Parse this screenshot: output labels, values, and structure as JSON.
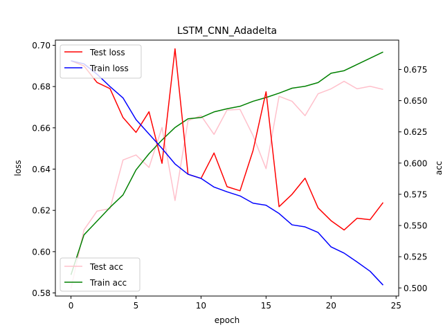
{
  "chart_data": {
    "type": "line",
    "title": "LSTM_CNN_Adadelta",
    "xlabel": "epoch",
    "ylabel_left": "loss",
    "ylabel_right": "acc",
    "x": [
      0,
      1,
      2,
      3,
      4,
      5,
      6,
      7,
      8,
      9,
      10,
      11,
      12,
      13,
      14,
      15,
      16,
      17,
      18,
      19,
      20,
      21,
      22,
      23,
      24
    ],
    "xlim": [
      -1.2,
      25.2
    ],
    "ylim_left": [
      0.5785,
      0.7025
    ],
    "ylim_right": [
      0.4935,
      0.6985
    ],
    "x_ticks": [
      0,
      5,
      10,
      15,
      20,
      25
    ],
    "y_ticks_left": [
      0.58,
      0.6,
      0.62,
      0.64,
      0.66,
      0.68,
      0.7
    ],
    "y_ticks_left_labels": [
      "0.58",
      "0.60",
      "0.62",
      "0.64",
      "0.66",
      "0.68",
      "0.70"
    ],
    "y_ticks_right": [
      0.5,
      0.525,
      0.55,
      0.575,
      0.6,
      0.625,
      0.65,
      0.675
    ],
    "y_ticks_right_labels": [
      "0.500",
      "0.525",
      "0.550",
      "0.575",
      "0.600",
      "0.625",
      "0.650",
      "0.675"
    ],
    "grid": false,
    "legend_left": {
      "placement": "upper-left",
      "entries": [
        "Test loss",
        "Train loss"
      ]
    },
    "legend_right": {
      "placement": "lower-left",
      "entries": [
        "Test acc",
        "Train acc"
      ]
    },
    "series": [
      {
        "name": "Test loss",
        "axis": "left",
        "color": "#ff0000",
        "values": [
          0.6925,
          0.69,
          0.682,
          0.679,
          0.665,
          0.6578,
          0.6678,
          0.6428,
          0.6983,
          0.6375,
          0.6355,
          0.6478,
          0.6315,
          0.6295,
          0.649,
          0.6775,
          0.6218,
          0.6278,
          0.6356,
          0.6212,
          0.615,
          0.6105,
          0.6162,
          0.6155,
          0.6238
        ]
      },
      {
        "name": "Train loss",
        "axis": "left",
        "color": "#0000ff",
        "values": [
          0.6925,
          0.691,
          0.686,
          0.68,
          0.6745,
          0.664,
          0.657,
          0.65,
          0.6425,
          0.6375,
          0.6355,
          0.6313,
          0.629,
          0.627,
          0.6235,
          0.6225,
          0.6185,
          0.613,
          0.612,
          0.6093,
          0.6023,
          0.5993,
          0.595,
          0.5905,
          0.5838
        ]
      },
      {
        "name": "Test acc",
        "axis": "right",
        "color": "#ffc0cb",
        "values": [
          0.4995,
          0.5465,
          0.5615,
          0.5635,
          0.6025,
          0.6065,
          0.5965,
          0.6285,
          0.57,
          0.634,
          0.638,
          0.623,
          0.6425,
          0.643,
          0.622,
          0.5955,
          0.6535,
          0.6495,
          0.638,
          0.6555,
          0.6595,
          0.6655,
          0.6595,
          0.6615,
          0.659
        ]
      },
      {
        "name": "Train acc",
        "axis": "right",
        "color": "#008000",
        "values": [
          0.5105,
          0.5425,
          0.5535,
          0.5645,
          0.5745,
          0.5945,
          0.6075,
          0.6185,
          0.6285,
          0.6355,
          0.6365,
          0.641,
          0.6435,
          0.6455,
          0.6495,
          0.6525,
          0.656,
          0.66,
          0.6615,
          0.6645,
          0.672,
          0.674,
          0.679,
          0.684,
          0.689
        ]
      }
    ]
  }
}
